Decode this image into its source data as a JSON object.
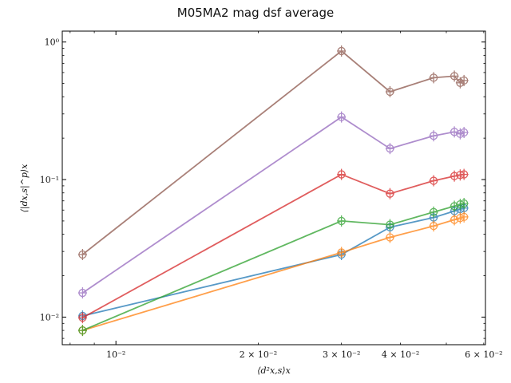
{
  "chart_data": {
    "type": "line",
    "title": "M05MA2 mag dsf average",
    "xlabel": "⟨d²x,s⟩x",
    "ylabel": "⟨|dx,s|^p⟩x",
    "xscale": "log",
    "yscale": "log",
    "xlim": [
      0.0077,
      0.0605
    ],
    "ylim": [
      0.0063,
      1.2
    ],
    "x_ticks": [
      {
        "value": 0.01,
        "label": "10⁻²"
      },
      {
        "value": 0.02,
        "label": "2 × 10⁻²"
      },
      {
        "value": 0.03,
        "label": "3 × 10⁻²"
      },
      {
        "value": 0.04,
        "label": "4 × 10⁻²"
      },
      {
        "value": 0.06,
        "label": "6 × 10⁻²"
      }
    ],
    "y_ticks": [
      {
        "value": 0.01,
        "label": "10⁻²"
      },
      {
        "value": 0.1,
        "label": "10⁻¹"
      },
      {
        "value": 1.0,
        "label": "10⁰"
      }
    ],
    "grid": false,
    "legend": "none",
    "series": [
      {
        "color": "#1f77b4",
        "marker": "circle-plus",
        "x": [
          0.0085,
          0.03,
          0.038,
          0.047,
          0.052,
          0.0535,
          0.0545
        ],
        "y": [
          0.0102,
          0.0285,
          0.045,
          0.053,
          0.059,
          0.061,
          0.062
        ]
      },
      {
        "color": "#ff7f0e",
        "marker": "circle-plus",
        "x": [
          0.0085,
          0.03,
          0.038,
          0.047,
          0.052,
          0.0535,
          0.0545
        ],
        "y": [
          0.008,
          0.0295,
          0.038,
          0.046,
          0.051,
          0.0525,
          0.0535
        ]
      },
      {
        "color": "#2ca02c",
        "marker": "circle-plus",
        "x": [
          0.0085,
          0.03,
          0.038,
          0.047,
          0.052,
          0.0535,
          0.0545
        ],
        "y": [
          0.008,
          0.05,
          0.047,
          0.058,
          0.064,
          0.066,
          0.067
        ]
      },
      {
        "color": "#d62728",
        "marker": "circle-plus",
        "x": [
          0.0085,
          0.03,
          0.038,
          0.047,
          0.052,
          0.0535,
          0.0545
        ],
        "y": [
          0.0099,
          0.109,
          0.079,
          0.098,
          0.106,
          0.108,
          0.109
        ]
      },
      {
        "color": "#9467bd",
        "marker": "circle-plus",
        "x": [
          0.0085,
          0.03,
          0.038,
          0.047,
          0.052,
          0.0535,
          0.0545
        ],
        "y": [
          0.015,
          0.285,
          0.168,
          0.208,
          0.222,
          0.215,
          0.22
        ]
      },
      {
        "color": "#8c564b",
        "marker": "circle-plus",
        "x": [
          0.0085,
          0.03,
          0.038,
          0.047,
          0.052,
          0.0535,
          0.0545
        ],
        "y": [
          0.0285,
          0.86,
          0.435,
          0.55,
          0.565,
          0.505,
          0.525
        ]
      }
    ]
  }
}
